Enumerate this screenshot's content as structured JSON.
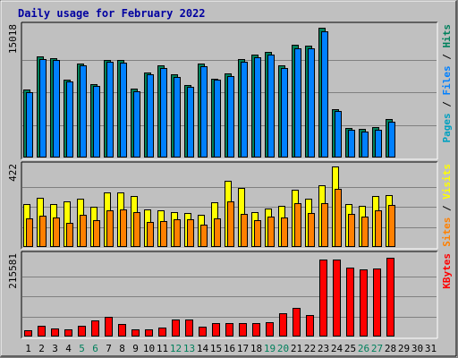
{
  "colors": {
    "pages": "#00a0c0",
    "files": "#0080ff",
    "hits": "#00805c",
    "visits": "#ffff00",
    "sites": "#ff8000",
    "kbytes": "#ff0000",
    "weekend_label": "#00805c",
    "day_label": "#000000",
    "title": "#0000a0"
  },
  "chart_data": {
    "type": "bar",
    "title": "Daily usage for February 2022",
    "days": [
      "1",
      "2",
      "3",
      "4",
      "5",
      "6",
      "7",
      "8",
      "9",
      "10",
      "11",
      "12",
      "13",
      "14",
      "15",
      "16",
      "17",
      "18",
      "19",
      "20",
      "21",
      "22",
      "23",
      "24",
      "25",
      "26",
      "27",
      "28",
      "29",
      "30",
      "31"
    ],
    "weekend_days": [
      5,
      6,
      12,
      13,
      19,
      20,
      26,
      27
    ],
    "panels": [
      {
        "id": "top",
        "ymax": 15018,
        "ymax_label": "15018",
        "legend": [
          {
            "text": "Pages",
            "color_key": "pages"
          },
          {
            "text": " / ",
            "color_key": "day_label"
          },
          {
            "text": "Files",
            "color_key": "files"
          },
          {
            "text": " / ",
            "color_key": "day_label"
          },
          {
            "text": "Hits",
            "color_key": "hits"
          }
        ],
        "series": [
          {
            "name": "Hits",
            "color_key": "hits",
            "values": [
              7800,
              11600,
              11400,
              9000,
              10800,
              8400,
              11200,
              11200,
              7900,
              9800,
              10600,
              9600,
              8300,
              10800,
              9100,
              9700,
              11300,
              11800,
              12100,
              10600,
              13000,
              12900,
              14900,
              5600,
              3400,
              3300,
              3500,
              4400,
              null,
              null,
              null
            ]
          },
          {
            "name": "Files",
            "color_key": "files",
            "values": [
              7500,
              11300,
              11200,
              8700,
              10600,
              8200,
              11000,
              10900,
              7600,
              9600,
              10300,
              9300,
              8100,
              10500,
              8900,
              9400,
              11000,
              11500,
              11800,
              10300,
              12600,
              12600,
              14500,
              5300,
              3200,
              3000,
              3200,
              4100,
              null,
              null,
              null
            ]
          }
        ]
      },
      {
        "id": "mid",
        "ymax": 422,
        "ymax_label": "422",
        "legend": [
          {
            "text": "Sites",
            "color_key": "sites"
          },
          {
            "text": " / ",
            "color_key": "day_label"
          },
          {
            "text": "Visits",
            "color_key": "visits"
          }
        ],
        "series": [
          {
            "name": "Visits",
            "color_key": "visits",
            "values": [
              225,
              260,
              225,
              240,
              255,
              210,
              285,
              285,
              265,
              195,
              190,
              185,
              180,
              168,
              235,
              345,
              310,
              185,
              200,
              215,
              300,
              255,
              325,
              420,
              225,
              215,
              265,
              270,
              null,
              null,
              null
            ]
          },
          {
            "name": "Sites",
            "color_key": "sites",
            "values": [
              150,
              165,
              155,
              125,
              170,
              140,
              190,
              195,
              185,
              130,
              135,
              145,
              145,
              115,
              150,
              240,
              175,
              140,
              160,
              155,
              230,
              180,
              230,
              305,
              175,
              160,
              190,
              220,
              null,
              null,
              null
            ]
          }
        ]
      },
      {
        "id": "bottom",
        "ymax": 215581,
        "ymax_label": "215581",
        "legend": [
          {
            "text": "KBytes",
            "color_key": "kbytes"
          }
        ],
        "series": [
          {
            "name": "KBytes",
            "color_key": "kbytes",
            "values": [
              17000,
              29000,
              22000,
              19000,
              29000,
              44000,
              53000,
              33000,
              19000,
              19000,
              25000,
              46000,
              45000,
              26000,
              37000,
              37000,
              37000,
              35000,
              39000,
              63000,
              77000,
              58000,
              205000,
              205000,
              184000,
              180000,
              182000,
              210000,
              null,
              null,
              null
            ]
          }
        ]
      }
    ]
  }
}
